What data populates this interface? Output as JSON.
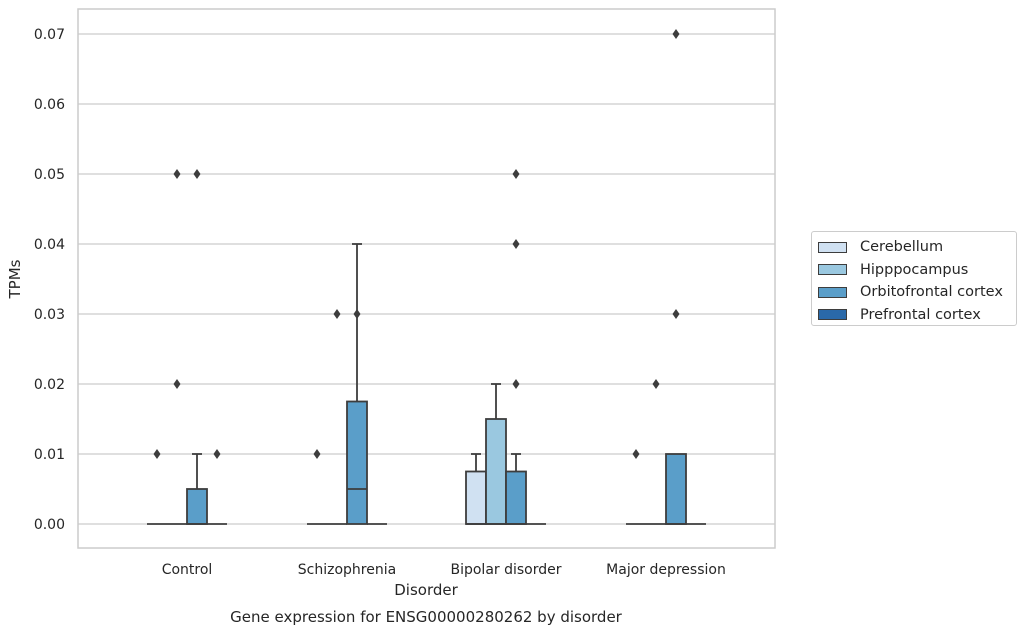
{
  "chart_data": {
    "type": "box",
    "title": "Gene expression for ENSG00000280262 by disorder",
    "xlabel": "Disorder",
    "ylabel": "TPMs",
    "categories": [
      "Control",
      "Schizophrenia",
      "Bipolar disorder",
      "Major depression"
    ],
    "ylim": [
      -0.0035,
      0.0735
    ],
    "yticks": [
      0.0,
      0.01,
      0.02,
      0.03,
      0.04,
      0.05,
      0.06,
      0.07
    ],
    "ytick_labels": [
      "0.00",
      "0.01",
      "0.02",
      "0.03",
      "0.04",
      "0.05",
      "0.06",
      "0.07"
    ],
    "grid": true,
    "legend_position": "right",
    "series": [
      {
        "name": "Cerebellum",
        "color": "#d0e1f2",
        "boxes": [
          {
            "q1": 0,
            "median": 0,
            "q3": 0,
            "whisker_low": 0,
            "whisker_high": 0,
            "outliers": [
              0.01
            ]
          },
          {
            "q1": 0,
            "median": 0,
            "q3": 0,
            "whisker_low": 0,
            "whisker_high": 0,
            "outliers": [
              0.01
            ]
          },
          {
            "q1": 0,
            "median": 0,
            "q3": 0.0075,
            "whisker_low": 0,
            "whisker_high": 0.01,
            "outliers": []
          },
          {
            "q1": 0,
            "median": 0,
            "q3": 0,
            "whisker_low": 0,
            "whisker_high": 0,
            "outliers": [
              0.01
            ]
          }
        ]
      },
      {
        "name": "Hipppocampus",
        "color": "#9ac8e0",
        "boxes": [
          {
            "q1": 0,
            "median": 0,
            "q3": 0,
            "whisker_low": 0,
            "whisker_high": 0,
            "outliers": [
              0.02,
              0.05
            ]
          },
          {
            "q1": 0,
            "median": 0,
            "q3": 0,
            "whisker_low": 0,
            "whisker_high": 0,
            "outliers": [
              0.03
            ]
          },
          {
            "q1": 0,
            "median": 0,
            "q3": 0.015,
            "whisker_low": 0,
            "whisker_high": 0.02,
            "outliers": []
          },
          {
            "q1": 0,
            "median": 0,
            "q3": 0,
            "whisker_low": 0,
            "whisker_high": 0,
            "outliers": [
              0.02
            ]
          }
        ]
      },
      {
        "name": "Orbitofrontal cortex",
        "color": "#5a9ec9",
        "boxes": [
          {
            "q1": 0,
            "median": 0,
            "q3": 0.005,
            "whisker_low": 0,
            "whisker_high": 0.01,
            "outliers": [
              0.05
            ]
          },
          {
            "q1": 0,
            "median": 0.005,
            "q3": 0.0175,
            "whisker_low": 0,
            "whisker_high": 0.04,
            "outliers": [
              0.03
            ]
          },
          {
            "q1": 0,
            "median": 0,
            "q3": 0.0075,
            "whisker_low": 0,
            "whisker_high": 0.01,
            "outliers": [
              0.02,
              0.04,
              0.05
            ]
          },
          {
            "q1": 0,
            "median": 0,
            "q3": 0.01,
            "whisker_low": 0,
            "whisker_high": 0.01,
            "outliers": [
              0.03,
              0.07
            ]
          }
        ]
      },
      {
        "name": "Prefrontal cortex",
        "color": "#2a69a9",
        "boxes": [
          {
            "q1": 0,
            "median": 0,
            "q3": 0,
            "whisker_low": 0,
            "whisker_high": 0,
            "outliers": [
              0.01
            ]
          },
          {
            "q1": 0,
            "median": 0,
            "q3": 0,
            "whisker_low": 0,
            "whisker_high": 0,
            "outliers": []
          },
          {
            "q1": 0,
            "median": 0,
            "q3": 0,
            "whisker_low": 0,
            "whisker_high": 0,
            "outliers": []
          },
          {
            "q1": 0,
            "median": 0,
            "q3": 0,
            "whisker_low": 0,
            "whisker_high": 0,
            "outliers": []
          }
        ]
      }
    ]
  }
}
